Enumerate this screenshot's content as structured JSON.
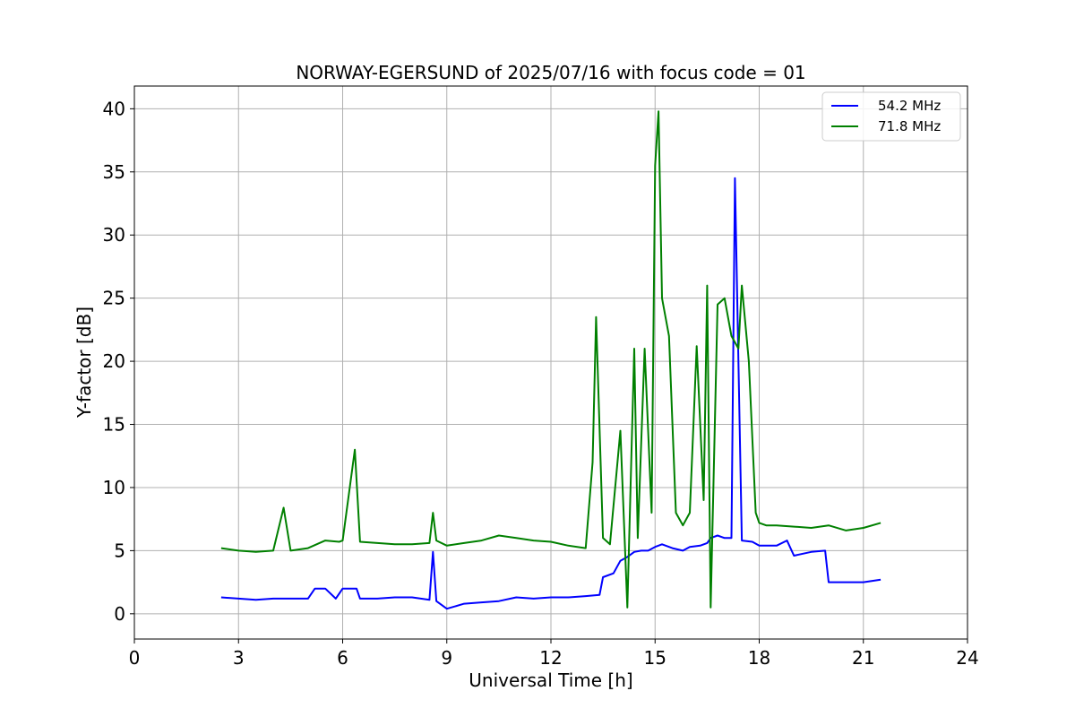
{
  "chart_data": {
    "type": "line",
    "title": "NORWAY-EGERSUND of 2025/07/16 with focus code = 01",
    "xlabel": "Universal Time [h]",
    "ylabel": "Y-factor [dB]",
    "xlim": [
      0,
      24
    ],
    "ylim": [
      -2,
      41.8
    ],
    "xticks": [
      0,
      3,
      6,
      9,
      12,
      15,
      18,
      21,
      24
    ],
    "yticks": [
      0,
      5,
      10,
      15,
      20,
      25,
      30,
      35,
      40
    ],
    "xtick_labels": [
      "0",
      "3",
      "6",
      "9",
      "12",
      "15",
      "18",
      "21",
      "24"
    ],
    "ytick_labels": [
      "0",
      "5",
      "10",
      "15",
      "20",
      "25",
      "30",
      "35",
      "40"
    ],
    "grid": true,
    "legend_position": "top-right",
    "series": [
      {
        "name": "54.2 MHz",
        "color": "#0000ff",
        "x": [
          2.5,
          3.0,
          3.5,
          4.0,
          4.5,
          5.0,
          5.2,
          5.5,
          5.8,
          6.0,
          6.4,
          6.5,
          7.0,
          7.5,
          8.0,
          8.5,
          8.6,
          8.7,
          9.0,
          9.5,
          10.0,
          10.5,
          11.0,
          11.5,
          12.0,
          12.5,
          13.0,
          13.4,
          13.5,
          13.8,
          14.0,
          14.2,
          14.4,
          14.6,
          14.8,
          15.0,
          15.2,
          15.5,
          15.8,
          16.0,
          16.3,
          16.5,
          16.6,
          16.8,
          17.0,
          17.2,
          17.3,
          17.5,
          17.8,
          18.0,
          18.5,
          18.8,
          19.0,
          19.5,
          19.9,
          20.0,
          20.5,
          21.0,
          21.5
        ],
        "y": [
          1.3,
          1.2,
          1.1,
          1.2,
          1.2,
          1.2,
          2.0,
          2.0,
          1.2,
          2.0,
          2.0,
          1.2,
          1.2,
          1.3,
          1.3,
          1.1,
          4.9,
          1.0,
          0.4,
          0.8,
          0.9,
          1.0,
          1.3,
          1.2,
          1.3,
          1.3,
          1.4,
          1.5,
          2.9,
          3.2,
          4.2,
          4.5,
          4.9,
          5.0,
          5.0,
          5.3,
          5.5,
          5.2,
          5.0,
          5.3,
          5.4,
          5.6,
          6.0,
          6.2,
          6.0,
          6.0,
          34.5,
          5.8,
          5.7,
          5.4,
          5.4,
          5.8,
          4.6,
          4.9,
          5.0,
          2.5,
          2.5,
          2.5,
          2.7
        ]
      },
      {
        "name": "71.8 MHz",
        "color": "#008000",
        "x": [
          2.5,
          3.0,
          3.5,
          4.0,
          4.3,
          4.5,
          5.0,
          5.5,
          5.9,
          6.0,
          6.35,
          6.5,
          7.0,
          7.5,
          8.0,
          8.5,
          8.6,
          8.7,
          9.0,
          9.5,
          10.0,
          10.5,
          11.0,
          11.5,
          12.0,
          12.5,
          13.0,
          13.2,
          13.3,
          13.5,
          13.7,
          14.0,
          14.2,
          14.4,
          14.5,
          14.7,
          14.9,
          15.0,
          15.1,
          15.2,
          15.4,
          15.6,
          15.8,
          16.0,
          16.2,
          16.4,
          16.5,
          16.6,
          16.8,
          17.0,
          17.2,
          17.4,
          17.5,
          17.7,
          17.9,
          18.0,
          18.2,
          18.5,
          19.0,
          19.5,
          20.0,
          20.5,
          21.0,
          21.5
        ],
        "y": [
          5.2,
          5.0,
          4.9,
          5.0,
          8.4,
          5.0,
          5.2,
          5.8,
          5.7,
          5.8,
          13.0,
          5.7,
          5.6,
          5.5,
          5.5,
          5.6,
          8.0,
          5.8,
          5.4,
          5.6,
          5.8,
          6.2,
          6.0,
          5.8,
          5.7,
          5.4,
          5.2,
          12.0,
          23.5,
          6.0,
          5.5,
          14.5,
          0.5,
          21.0,
          6.0,
          21.0,
          8.0,
          35.5,
          39.8,
          25.0,
          22.0,
          8.0,
          7.0,
          8.0,
          21.2,
          9.0,
          26.0,
          0.5,
          24.5,
          25.0,
          22.0,
          21.0,
          26.0,
          20.0,
          8.0,
          7.2,
          7.0,
          7.0,
          6.9,
          6.8,
          7.0,
          6.6,
          6.8,
          7.2
        ]
      }
    ]
  }
}
